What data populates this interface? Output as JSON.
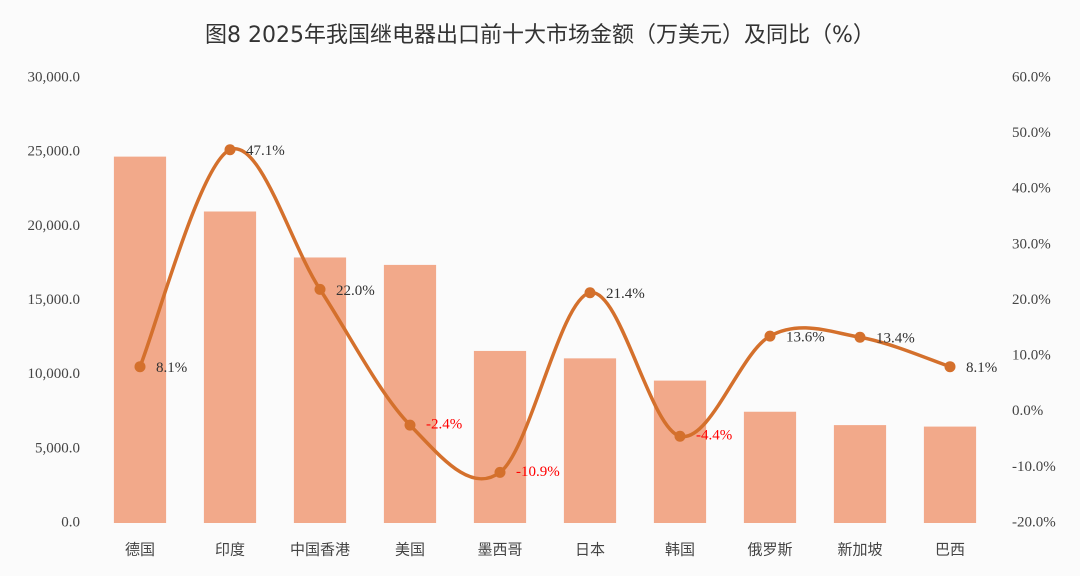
{
  "chart_data": {
    "type": "bar",
    "title": "图8 2025年我国继电器出口前十大市场金额（万美元）及同比（%）",
    "categories": [
      "德国",
      "印度",
      "中国香港",
      "美国",
      "墨西哥",
      "日本",
      "韩国",
      "俄罗斯",
      "新加坡",
      "巴西"
    ],
    "series": [
      {
        "type": "bar",
        "color": "#f2a98a",
        "values": [
          24700,
          21000,
          17900,
          17400,
          11600,
          11100,
          9600,
          7500,
          6600,
          6500
        ]
      },
      {
        "type": "line",
        "axis": "y2",
        "color": "#d4702c",
        "negative_label_color": "#ff0000",
        "values": [
          8.1,
          47.1,
          22.0,
          -2.4,
          -10.9,
          21.4,
          -4.4,
          13.6,
          13.4,
          8.1
        ],
        "value_labels": [
          "8.1%",
          "47.1%",
          "22.0%",
          "-2.4%",
          "-10.9%",
          "21.4%",
          "-4.4%",
          "13.6%",
          "13.4%",
          "8.1%"
        ]
      }
    ],
    "ylim": [
      0,
      30000
    ],
    "yticks": [
      {
        "value": 0,
        "label": "0.0"
      },
      {
        "value": 5000,
        "label": "5,000.0"
      },
      {
        "value": 10000,
        "label": "10,000.0"
      },
      {
        "value": 15000,
        "label": "15,000.0"
      },
      {
        "value": 20000,
        "label": "20,000.0"
      },
      {
        "value": 25000,
        "label": "25,000.0"
      },
      {
        "value": 30000,
        "label": "30,000.0"
      }
    ],
    "y2lim": [
      -20,
      60
    ],
    "y2ticks": [
      {
        "value": -20,
        "label": "-20.0%"
      },
      {
        "value": -10,
        "label": "-10.0%"
      },
      {
        "value": 0,
        "label": "0.0%"
      },
      {
        "value": 10,
        "label": "10.0%"
      },
      {
        "value": 20,
        "label": "20.0%"
      },
      {
        "value": 30,
        "label": "30.0%"
      },
      {
        "value": 40,
        "label": "40.0%"
      },
      {
        "value": 50,
        "label": "50.0%"
      },
      {
        "value": 60,
        "label": "60.0%"
      }
    ],
    "grid": false
  }
}
